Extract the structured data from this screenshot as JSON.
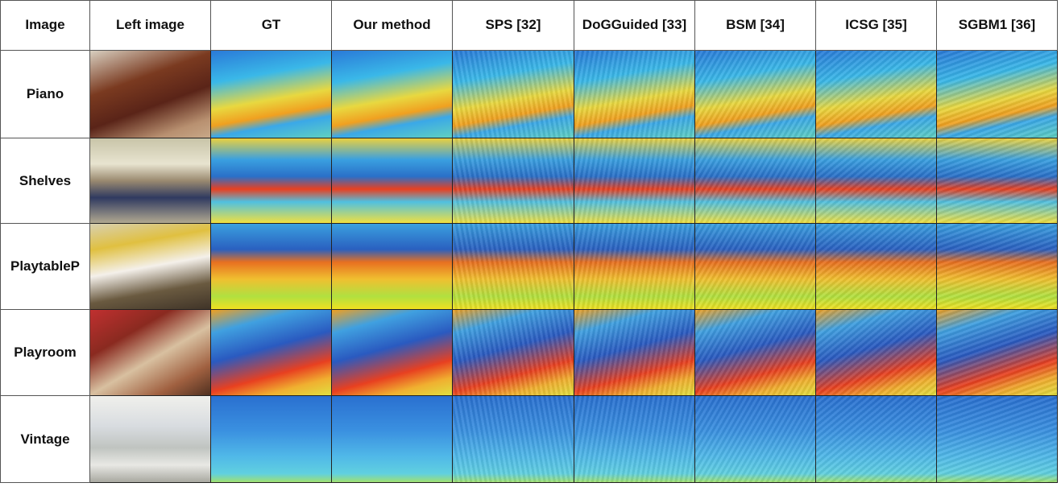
{
  "table": {
    "header": [
      "Image",
      "Left image",
      "GT",
      "Our method",
      "SPS [32]",
      "DoGGuided [33]",
      "BSM [34]",
      "ICSG [35]",
      "SGBM1 [36]"
    ],
    "rows": [
      "Piano",
      "Shelves",
      "PlaytableP",
      "Playroom",
      "Vintage"
    ]
  }
}
